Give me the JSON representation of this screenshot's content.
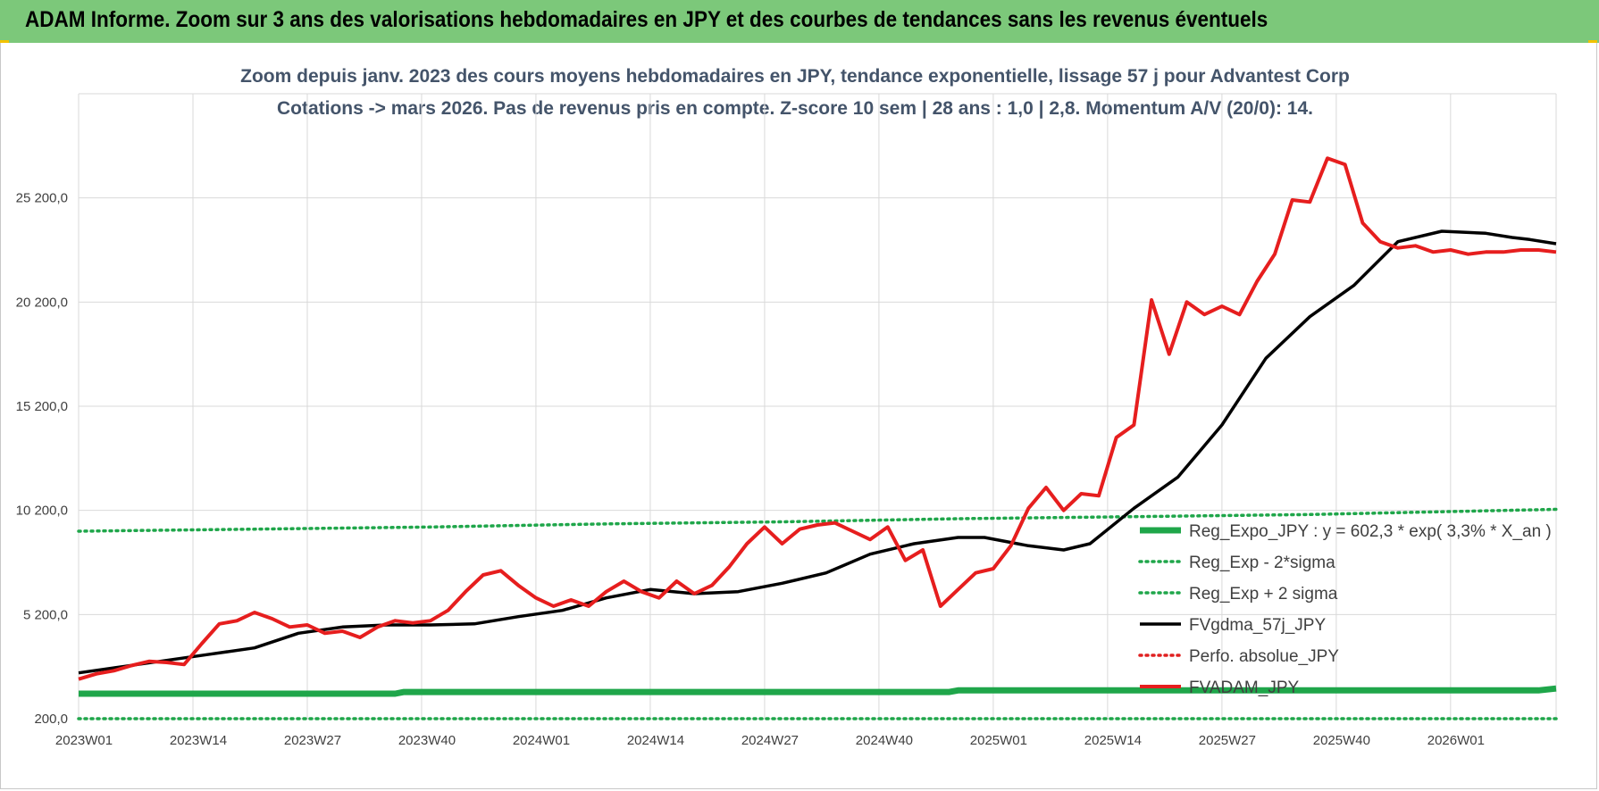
{
  "banner": {
    "title": "ADAM Informe. Zoom sur 3 ans des valorisations hebdomadaires en JPY et des courbes de tendances sans les revenus éventuels",
    "color": "#7cc87a"
  },
  "chart_data": {
    "type": "line",
    "title": "Zoom depuis janv. 2023 des cours moyens hebdomadaires en JPY, tendance exponentielle, lissage 57 j pour Advantest Corp",
    "subtitle": "Cotations -> mars 2026. Pas de revenus pris en compte. Z-score 10 sem | 28 ans : 1,0 | 2,8. Momentum A/V (20/0): 14.",
    "xlabel": "",
    "ylabel": "",
    "ylim": [
      200,
      30200
    ],
    "yticks": [
      "200,0",
      "5 200,0",
      "10 200,0",
      "15 200,0",
      "20 200,0",
      "25 200,0"
    ],
    "ytick_values": [
      200,
      5200,
      10200,
      15200,
      20200,
      25200
    ],
    "xticks": [
      "2023W01",
      "2023W14",
      "2023W27",
      "2023W40",
      "2024W01",
      "2024W14",
      "2024W27",
      "2024W40",
      "2025W01",
      "2025W14",
      "2025W27",
      "2025W40",
      "2026W01"
    ],
    "x_range_weeks": [
      0,
      168
    ],
    "grid": true,
    "legend_position": "right-bottom",
    "series": [
      {
        "name": "Reg_Expo_JPY : y = 602,3 * exp( 3,3% *  X_an )",
        "color": "#1fa64a",
        "style": "solid-thick",
        "x": [
          0,
          36,
          37,
          99,
          100,
          166,
          168
        ],
        "values": [
          1400,
          1400,
          1480,
          1480,
          1560,
          1560,
          1650
        ]
      },
      {
        "name": "Reg_Exp - 2*sigma",
        "color": "#1fa64a",
        "style": "dotted",
        "x": [
          0,
          168
        ],
        "values": [
          200,
          200
        ]
      },
      {
        "name": "Reg_Exp + 2 sigma",
        "color": "#1fa64a",
        "style": "dotted",
        "x": [
          0,
          20,
          40,
          60,
          80,
          100,
          120,
          140,
          168
        ],
        "values": [
          9200,
          9300,
          9400,
          9550,
          9650,
          9800,
          9900,
          10000,
          10250
        ]
      },
      {
        "name": "FVgdma_57j_JPY",
        "color": "#000000",
        "style": "solid",
        "x": [
          0,
          5,
          10,
          15,
          20,
          25,
          30,
          35,
          40,
          45,
          50,
          55,
          60,
          65,
          70,
          75,
          80,
          85,
          90,
          95,
          100,
          103,
          108,
          112,
          115,
          120,
          125,
          130,
          135,
          140,
          145,
          150,
          155,
          160,
          163,
          165,
          168
        ],
        "values": [
          2400,
          2700,
          3000,
          3300,
          3600,
          4300,
          4600,
          4700,
          4700,
          4750,
          5100,
          5400,
          6000,
          6400,
          6200,
          6300,
          6700,
          7200,
          8100,
          8600,
          8900,
          8900,
          8500,
          8300,
          8600,
          10300,
          11800,
          14300,
          17500,
          19500,
          21000,
          23100,
          23600,
          23500,
          23300,
          23200,
          23000
        ]
      },
      {
        "name": "Perfo. absolue_JPY",
        "color": "#e02020",
        "style": "dotted",
        "x": [],
        "values": []
      },
      {
        "name": "FVADAM_JPY",
        "color": "#e61e1e",
        "style": "solid-thick",
        "x": [
          0,
          2,
          4,
          6,
          8,
          10,
          12,
          14,
          16,
          18,
          20,
          22,
          24,
          26,
          28,
          30,
          32,
          34,
          36,
          38,
          40,
          42,
          44,
          46,
          48,
          50,
          52,
          54,
          56,
          58,
          60,
          62,
          64,
          66,
          68,
          70,
          72,
          74,
          76,
          78,
          80,
          82,
          84,
          86,
          88,
          90,
          92,
          94,
          96,
          98,
          100,
          102,
          104,
          106,
          108,
          110,
          112,
          114,
          116,
          118,
          120,
          122,
          124,
          126,
          128,
          130,
          132,
          134,
          136,
          138,
          140,
          142,
          144,
          146,
          148,
          150,
          152,
          154,
          156,
          158,
          160,
          162,
          164,
          166,
          168
        ],
        "values": [
          2100,
          2350,
          2500,
          2750,
          2950,
          2900,
          2800,
          3800,
          4750,
          4900,
          5300,
          5000,
          4600,
          4700,
          4300,
          4400,
          4100,
          4600,
          4900,
          4800,
          4900,
          5400,
          6300,
          7100,
          7300,
          6600,
          6000,
          5600,
          5900,
          5600,
          6300,
          6800,
          6300,
          6000,
          6800,
          6200,
          6600,
          7500,
          8600,
          9400,
          8600,
          9300,
          9500,
          9600,
          9200,
          8800,
          9400,
          7800,
          8300,
          5600,
          6400,
          7200,
          7400,
          8500,
          10300,
          11300,
          10200,
          11000,
          10900,
          13700,
          14300,
          20300,
          17700,
          20200,
          19600,
          20000,
          19600,
          21200,
          22500,
          25100,
          25000,
          27100,
          26800,
          24000,
          23100,
          22800,
          22900,
          22600,
          22700,
          22500,
          22600,
          22600,
          22700,
          22700,
          22600
        ]
      }
    ]
  }
}
